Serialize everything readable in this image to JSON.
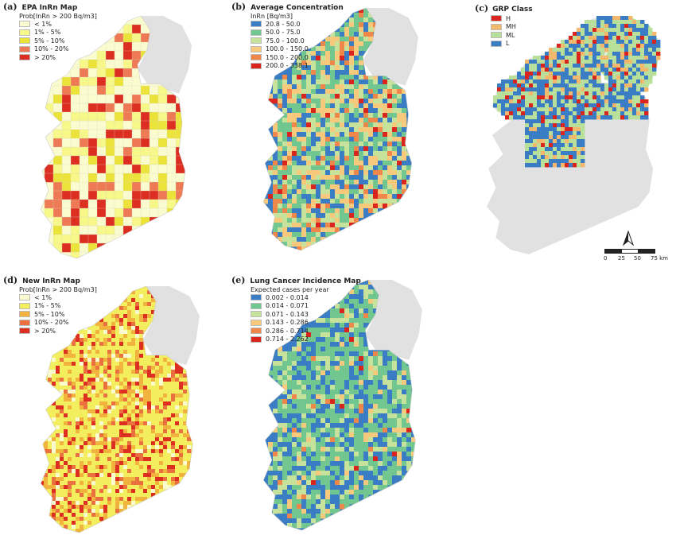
{
  "panels": [
    {
      "id": "a",
      "letter": "(a)",
      "title": "EPA InRn Map",
      "subtitle": "Prob[InRn > 200 Bq/m3]",
      "legend": [
        {
          "label": "< 1%",
          "color": "#fbfbd0"
        },
        {
          "label": "1% - 5%",
          "color": "#f7f78a"
        },
        {
          "label": "5% - 10%",
          "color": "#ece33a"
        },
        {
          "label": "10% - 20%",
          "color": "#ee7a55"
        },
        {
          "label": "> 20%",
          "color": "#dd2e22"
        }
      ]
    },
    {
      "id": "b",
      "letter": "(b)",
      "title": "Average Concentration",
      "subtitle": "InRn [Bq/m3]",
      "legend": [
        {
          "label": "20.8 - 50.0",
          "color": "#3a7dc4"
        },
        {
          "label": "50.0 - 75.0",
          "color": "#72c68f"
        },
        {
          "label": "75.0 - 100.0",
          "color": "#c7e39b"
        },
        {
          "label": "100.0 - 150.0",
          "color": "#f7c97c"
        },
        {
          "label": "150.0 - 200.0",
          "color": "#f0874a"
        },
        {
          "label": "200.0 - 338.1",
          "color": "#d9251d"
        }
      ]
    },
    {
      "id": "c",
      "letter": "(c)",
      "title": "GRP Class",
      "subtitle": "",
      "legend": [
        {
          "label": "H",
          "color": "#d9251d"
        },
        {
          "label": "MH",
          "color": "#f4b86c"
        },
        {
          "label": "ML",
          "color": "#b9e09a"
        },
        {
          "label": "L",
          "color": "#3a7dc4"
        }
      ]
    },
    {
      "id": "d",
      "letter": "(d)",
      "title": "New InRn Map",
      "subtitle": "Prob[InRn > 200 Bq/m3]",
      "legend": [
        {
          "label": "< 1%",
          "color": "#fbfbd0"
        },
        {
          "label": "1% - 5%",
          "color": "#f2ee5e"
        },
        {
          "label": "5% - 10%",
          "color": "#f2b23e"
        },
        {
          "label": "10% - 20%",
          "color": "#ea7040"
        },
        {
          "label": "> 20%",
          "color": "#dd2e22"
        }
      ]
    },
    {
      "id": "e",
      "letter": "(e)",
      "title": "Lung Cancer Incidence Map",
      "subtitle": "Expected cases per year",
      "legend": [
        {
          "label": "0.002 - 0.014",
          "color": "#3a7dc4"
        },
        {
          "label": "0.014 - 0.071",
          "color": "#72c68f"
        },
        {
          "label": "0.071 - 0.143",
          "color": "#c7e39b"
        },
        {
          "label": "0.143 - 0.286",
          "color": "#f7c97c"
        },
        {
          "label": "0.286 - 0.714",
          "color": "#f0874a"
        },
        {
          "label": "0.714 - 2.262",
          "color": "#d9251d"
        }
      ]
    }
  ],
  "scalebar": {
    "ticks": [
      "0",
      "25",
      "50",
      "75 km"
    ],
    "north": "N"
  },
  "colors": {
    "northern_ireland": "#e1e1e1",
    "outline": "#cccccc"
  }
}
